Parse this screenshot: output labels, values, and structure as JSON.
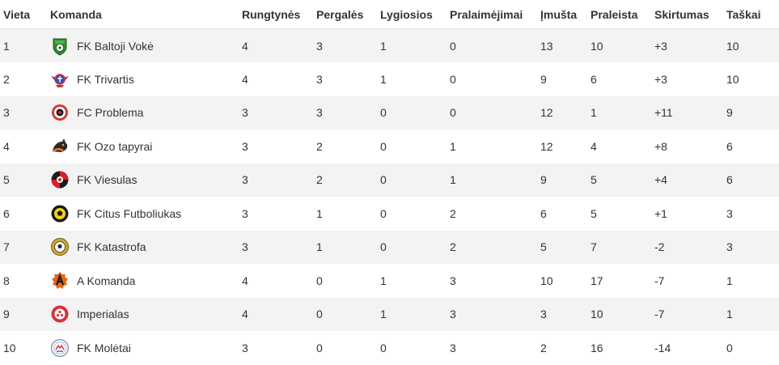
{
  "table": {
    "headers": {
      "place": "Vieta",
      "team": "Komanda",
      "played": "Rungtynės",
      "wins": "Pergalės",
      "draws": "Lygiosios",
      "losses": "Pralaimėjimai",
      "scored": "Įmušta",
      "conceded": "Praleista",
      "diff": "Skirtumas",
      "points": "Taškai"
    },
    "rows": [
      {
        "place": "1",
        "team": "FK Baltoji Vokė",
        "logo_icon": "green-shield-ball-icon",
        "played": "4",
        "wins": "3",
        "draws": "1",
        "losses": "0",
        "scored": "13",
        "conceded": "10",
        "diff": "+3",
        "points": "10"
      },
      {
        "place": "2",
        "team": "FK Trivartis",
        "logo_icon": "winged-crest-icon",
        "played": "4",
        "wins": "3",
        "draws": "1",
        "losses": "0",
        "scored": "9",
        "conceded": "6",
        "diff": "+3",
        "points": "10"
      },
      {
        "place": "3",
        "team": "FC Problema",
        "logo_icon": "red-round-badge-icon",
        "played": "3",
        "wins": "3",
        "draws": "0",
        "losses": "0",
        "scored": "12",
        "conceded": "1",
        "diff": "+11",
        "points": "9"
      },
      {
        "place": "4",
        "team": "FK Ozo tapyrai",
        "logo_icon": "tapir-head-icon",
        "played": "3",
        "wins": "2",
        "draws": "0",
        "losses": "1",
        "scored": "12",
        "conceded": "4",
        "diff": "+8",
        "points": "6"
      },
      {
        "place": "5",
        "team": "FK Viesulas",
        "logo_icon": "red-black-circle-icon",
        "played": "3",
        "wins": "2",
        "draws": "0",
        "losses": "1",
        "scored": "9",
        "conceded": "5",
        "diff": "+4",
        "points": "6"
      },
      {
        "place": "6",
        "team": "FK Citus Futboliukas",
        "logo_icon": "yellow-black-ball-icon",
        "played": "3",
        "wins": "1",
        "draws": "0",
        "losses": "2",
        "scored": "6",
        "conceded": "5",
        "diff": "+1",
        "points": "3"
      },
      {
        "place": "7",
        "team": "FK Katastrofa",
        "logo_icon": "gold-ball-badge-icon",
        "played": "3",
        "wins": "1",
        "draws": "0",
        "losses": "2",
        "scored": "5",
        "conceded": "7",
        "diff": "-2",
        "points": "3"
      },
      {
        "place": "8",
        "team": "A Komanda",
        "logo_icon": "orange-a-badge-icon",
        "played": "4",
        "wins": "0",
        "draws": "1",
        "losses": "3",
        "scored": "10",
        "conceded": "17",
        "diff": "-7",
        "points": "1"
      },
      {
        "place": "9",
        "team": "Imperialas",
        "logo_icon": "red-white-ball-icon",
        "played": "4",
        "wins": "0",
        "draws": "1",
        "losses": "3",
        "scored": "3",
        "conceded": "10",
        "diff": "-7",
        "points": "1"
      },
      {
        "place": "10",
        "team": "FK Molėtai",
        "logo_icon": "blue-round-crest-icon",
        "played": "3",
        "wins": "0",
        "draws": "0",
        "losses": "3",
        "scored": "2",
        "conceded": "16",
        "diff": "-14",
        "points": "0"
      }
    ]
  }
}
